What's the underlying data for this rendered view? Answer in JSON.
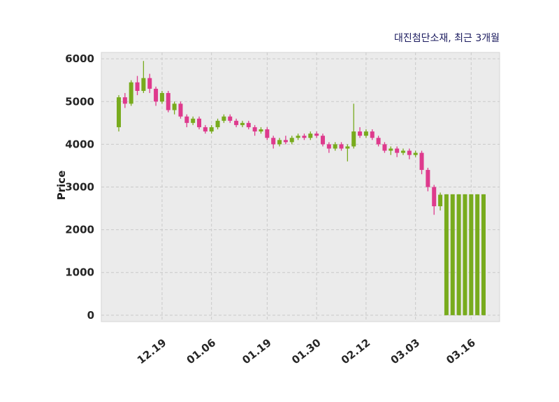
{
  "colors": {
    "up": "#78ab1d",
    "down": "#de3a8d",
    "panel_bg": "#ebebeb",
    "panel_border": "#d5d5d5",
    "grid": "#c9c9c9",
    "tick_text": "#262626",
    "title_text": "#1a1a5e"
  },
  "chart_data": {
    "type": "candlestick",
    "title": "대진첨단소재, 최근 3개월",
    "ylabel": "Price",
    "xlabel": "",
    "grid": true,
    "ylim": [
      -150,
      6150
    ],
    "yticks": [
      0,
      1000,
      2000,
      3000,
      4000,
      5000,
      6000
    ],
    "xticks": [
      {
        "index": 7,
        "label": "12.19"
      },
      {
        "index": 15,
        "label": "01.06"
      },
      {
        "index": 24,
        "label": "01.19"
      },
      {
        "index": 32,
        "label": "01.30"
      },
      {
        "index": 40,
        "label": "02.12"
      },
      {
        "index": 48,
        "label": "03.03"
      },
      {
        "index": 57,
        "label": "03.16"
      }
    ],
    "candles_format": [
      "open",
      "high",
      "low",
      "close"
    ],
    "candles": [
      [
        4400,
        5150,
        4300,
        5100
      ],
      [
        5100,
        5200,
        4850,
        4950
      ],
      [
        4950,
        5500,
        4900,
        5450
      ],
      [
        5450,
        5600,
        5150,
        5250
      ],
      [
        5250,
        5950,
        5200,
        5550
      ],
      [
        5550,
        5650,
        5200,
        5300
      ],
      [
        5300,
        5350,
        4900,
        5000
      ],
      [
        5000,
        5250,
        4950,
        5200
      ],
      [
        5200,
        5250,
        4750,
        4800
      ],
      [
        4800,
        5000,
        4700,
        4950
      ],
      [
        4950,
        5000,
        4600,
        4650
      ],
      [
        4650,
        4700,
        4400,
        4500
      ],
      [
        4500,
        4650,
        4450,
        4600
      ],
      [
        4600,
        4650,
        4350,
        4400
      ],
      [
        4400,
        4450,
        4250,
        4300
      ],
      [
        4300,
        4450,
        4250,
        4400
      ],
      [
        4400,
        4600,
        4350,
        4550
      ],
      [
        4550,
        4700,
        4500,
        4650
      ],
      [
        4650,
        4700,
        4500,
        4550
      ],
      [
        4550,
        4600,
        4400,
        4450
      ],
      [
        4450,
        4550,
        4400,
        4500
      ],
      [
        4500,
        4550,
        4350,
        4400
      ],
      [
        4400,
        4450,
        4200,
        4300
      ],
      [
        4300,
        4400,
        4250,
        4350
      ],
      [
        4350,
        4400,
        4100,
        4150
      ],
      [
        4150,
        4200,
        3900,
        4000
      ],
      [
        4000,
        4150,
        3950,
        4100
      ],
      [
        4100,
        4200,
        4000,
        4050
      ],
      [
        4050,
        4200,
        4000,
        4150
      ],
      [
        4150,
        4250,
        4100,
        4200
      ],
      [
        4200,
        4250,
        4100,
        4150
      ],
      [
        4150,
        4300,
        4100,
        4250
      ],
      [
        4250,
        4300,
        4150,
        4200
      ],
      [
        4200,
        4250,
        3950,
        4000
      ],
      [
        4000,
        4050,
        3800,
        3900
      ],
      [
        3900,
        4050,
        3850,
        4000
      ],
      [
        4000,
        4050,
        3850,
        3900
      ],
      [
        3900,
        4000,
        3600,
        3950
      ],
      [
        3950,
        4950,
        3900,
        4300
      ],
      [
        4300,
        4400,
        4150,
        4200
      ],
      [
        4200,
        4350,
        4150,
        4300
      ],
      [
        4300,
        4350,
        4100,
        4150
      ],
      [
        4150,
        4200,
        3950,
        4000
      ],
      [
        4000,
        4050,
        3800,
        3850
      ],
      [
        3850,
        3950,
        3750,
        3900
      ],
      [
        3900,
        3950,
        3700,
        3800
      ],
      [
        3800,
        3900,
        3750,
        3850
      ],
      [
        3850,
        3900,
        3650,
        3750
      ],
      [
        3750,
        3850,
        3700,
        3800
      ],
      [
        3800,
        3850,
        3300,
        3400
      ],
      [
        3400,
        3450,
        2900,
        3000
      ],
      [
        3000,
        3050,
        2350,
        2550
      ],
      [
        2550,
        2870,
        2450,
        2820
      ],
      [
        0,
        2830,
        0,
        2830
      ],
      [
        0,
        2830,
        0,
        2830
      ],
      [
        0,
        2830,
        0,
        2830
      ],
      [
        0,
        2830,
        0,
        2830
      ],
      [
        0,
        2830,
        0,
        2830
      ],
      [
        0,
        2830,
        0,
        2830
      ],
      [
        0,
        2830,
        0,
        2830
      ]
    ]
  }
}
